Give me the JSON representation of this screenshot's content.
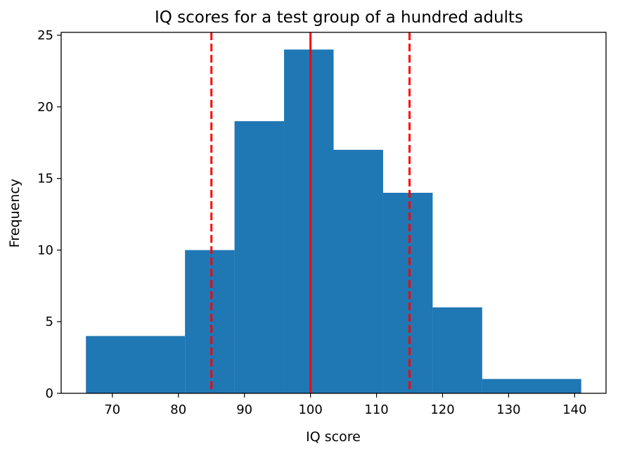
{
  "chart_data": {
    "type": "bar",
    "subtype": "histogram",
    "title": "IQ scores for a test group of a hundred adults",
    "xlabel": "IQ score",
    "ylabel": "Frequency",
    "bins": [
      {
        "x0": 66.0,
        "x1": 81.0,
        "count": 4
      },
      {
        "x0": 81.0,
        "x1": 88.5,
        "count": 10
      },
      {
        "x0": 88.5,
        "x1": 96.0,
        "count": 19
      },
      {
        "x0": 96.0,
        "x1": 103.5,
        "count": 24
      },
      {
        "x0": 103.5,
        "x1": 111.0,
        "count": 17
      },
      {
        "x0": 111.0,
        "x1": 118.5,
        "count": 14
      },
      {
        "x0": 118.5,
        "x1": 126.0,
        "count": 6
      },
      {
        "x0": 126.0,
        "x1": 141.0,
        "count": 1
      }
    ],
    "xlim": [
      62.25,
      144.75
    ],
    "ylim": [
      0,
      25.2
    ],
    "xticks": [
      70,
      80,
      90,
      100,
      110,
      120,
      130,
      140
    ],
    "yticks": [
      0,
      5,
      10,
      15,
      20,
      25
    ],
    "reference_lines": [
      {
        "x": 85,
        "style": "dashed",
        "color": "#ff0000"
      },
      {
        "x": 100,
        "style": "solid",
        "color": "#ff0000"
      },
      {
        "x": 115,
        "style": "dashed",
        "color": "#ff0000"
      }
    ],
    "bar_color": "#1f77b4",
    "grid": false,
    "legend": false
  }
}
